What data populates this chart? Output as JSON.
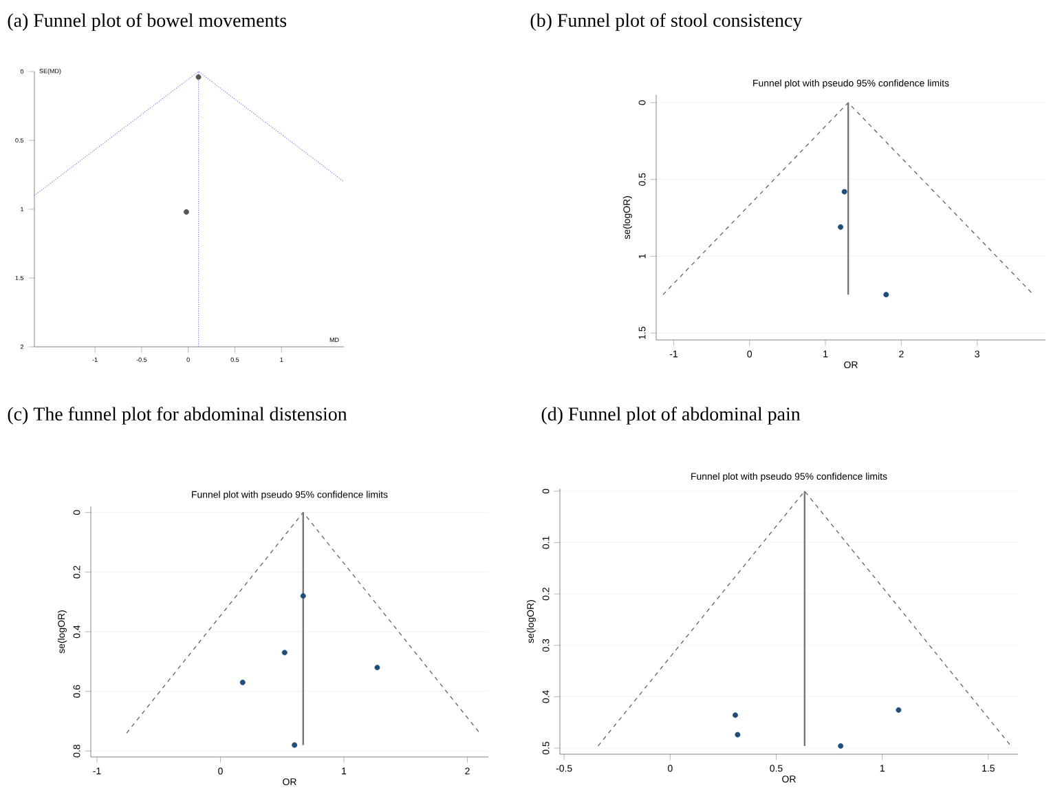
{
  "chart_data": [
    {
      "type": "scatter",
      "title": "(a) Funnel plot of bowel movements",
      "xlabel": "MD",
      "ylabel": "SE(MD)",
      "xlim": [
        -1.65,
        1.67
      ],
      "ylim": [
        2,
        0
      ],
      "xticks": [
        -1,
        -0.5,
        0,
        0.5,
        1
      ],
      "yticks": [
        0,
        0.5,
        1,
        1.5,
        2
      ],
      "series": [
        {
          "type": "line",
          "marker": "none",
          "color": "#7b7bf0",
          "line_style": "dotted",
          "x": [
            -1.65,
            0.11,
            1.67
          ],
          "values": [
            0.9,
            0,
            0.8
          ]
        },
        {
          "type": "line",
          "marker": "none",
          "color": "#7b7bf0",
          "line_style": "dotted",
          "x": [
            0.11,
            0.11
          ],
          "values": [
            0,
            2
          ]
        },
        {
          "marker": "circle",
          "color": "#555555",
          "x": [
            0.11,
            -0.02
          ],
          "values": [
            0.04,
            1.02
          ]
        }
      ]
    },
    {
      "type": "scatter",
      "title": "(b) Funnel plot of stool consistency",
      "subtitle": "Funnel plot with pseudo 95% confidence limits",
      "xlabel": "OR",
      "ylabel": "se(logOR)",
      "xlim": [
        -1.23,
        3.9
      ],
      "ylim": [
        1.545,
        -0.05
      ],
      "xticks": [
        -1,
        0,
        1,
        2,
        3
      ],
      "yticks": [
        0,
        0.5,
        1,
        1.5
      ],
      "grid": "y",
      "series": [
        {
          "type": "line",
          "marker": "none",
          "color": "#555555",
          "line_style": "dashed",
          "x": [
            -1.14,
            1.3,
            3.74
          ],
          "values": [
            1.25,
            0,
            1.25
          ]
        },
        {
          "type": "line",
          "marker": "none",
          "color": "#777777",
          "line_style": "solid",
          "x": [
            1.3,
            1.3
          ],
          "values": [
            0,
            1.25
          ]
        },
        {
          "marker": "circle",
          "color": "#1f4e79",
          "x": [
            1.25,
            1.2,
            1.8
          ],
          "values": [
            0.58,
            0.81,
            1.25
          ]
        }
      ]
    },
    {
      "type": "scatter",
      "title": "(c) The funnel plot for abdominal distension",
      "subtitle": "Funnel plot with pseudo 95% confidence limits",
      "xlabel": "OR",
      "ylabel": "se(logOR)",
      "xlim": [
        -1.05,
        2.17
      ],
      "ylim": [
        0.82,
        -0.02
      ],
      "xticks": [
        -1,
        0,
        1,
        2
      ],
      "yticks": [
        0,
        0.2,
        0.4,
        0.6,
        0.8
      ],
      "grid": "y",
      "series": [
        {
          "type": "line",
          "marker": "none",
          "color": "#555555",
          "line_style": "dashed",
          "x": [
            -0.76,
            0.67,
            2.1
          ],
          "values": [
            0.74,
            0,
            0.74
          ]
        },
        {
          "type": "line",
          "marker": "none",
          "color": "#777777",
          "line_style": "solid",
          "x": [
            0.67,
            0.67
          ],
          "values": [
            0,
            0.78
          ]
        },
        {
          "marker": "circle",
          "color": "#1f4e79",
          "x": [
            0.67,
            0.52,
            0.18,
            1.27,
            0.6
          ],
          "values": [
            0.28,
            0.47,
            0.57,
            0.52,
            0.78
          ]
        }
      ]
    },
    {
      "type": "scatter",
      "title": "(d) Funnel plot of abdominal pain",
      "subtitle": "Funnel plot with pseudo 95% confidence limits",
      "xlabel": "OR",
      "ylabel": "se(logOR)",
      "xlim": [
        -0.52,
        1.64
      ],
      "ylim": [
        0.512,
        -0.005
      ],
      "xticks": [
        -0.5,
        0,
        0.5,
        1,
        1.5
      ],
      "yticks": [
        0,
        0.1,
        0.2,
        0.3,
        0.4,
        0.5
      ],
      "grid": "y",
      "series": [
        {
          "type": "line",
          "marker": "none",
          "color": "#555555",
          "line_style": "dashed",
          "x": [
            -0.34,
            0.634,
            1.607
          ],
          "values": [
            0.496,
            0,
            0.496
          ]
        },
        {
          "type": "line",
          "marker": "none",
          "color": "#777777",
          "line_style": "solid",
          "x": [
            0.634,
            0.634
          ],
          "values": [
            0,
            0.496
          ]
        },
        {
          "marker": "circle",
          "color": "#1f4e79",
          "x": [
            0.307,
            0.318,
            0.804,
            1.077
          ],
          "values": [
            0.436,
            0.474,
            0.496,
            0.426
          ]
        }
      ]
    }
  ]
}
